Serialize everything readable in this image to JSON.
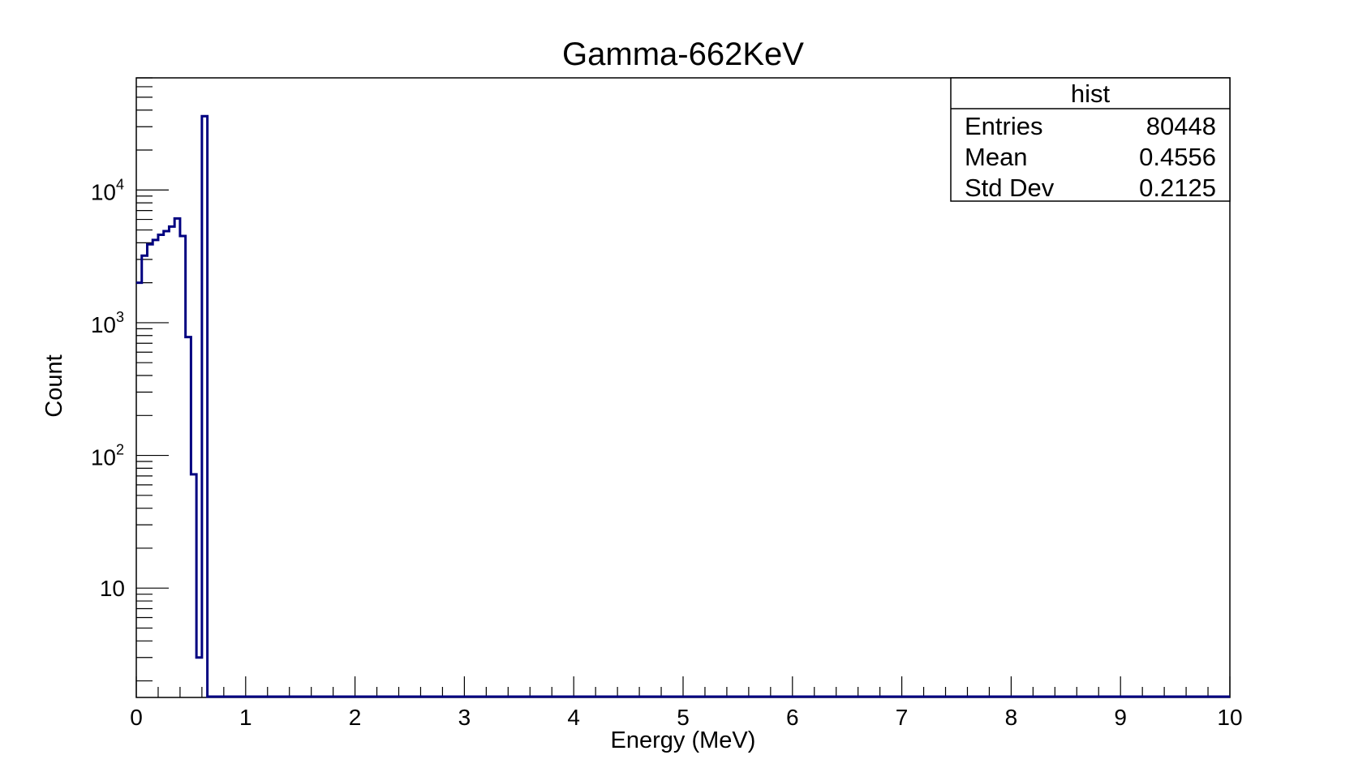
{
  "chart_data": {
    "type": "histogram",
    "title": "Gamma-662KeV",
    "xlabel": "Energy (MeV)",
    "ylabel": "Count",
    "xlim": [
      0,
      10
    ],
    "ylim": [
      1.5,
      70000
    ],
    "yscale": "log",
    "grid": false,
    "line_color": "#000080",
    "bin_width": 0.05,
    "bin_start": 0,
    "values": [
      2000,
      3200,
      3900,
      4200,
      4600,
      4900,
      5300,
      6100,
      4500,
      780,
      72,
      3,
      36000
    ],
    "x_ticks": [
      "0",
      "1",
      "2",
      "3",
      "4",
      "5",
      "6",
      "7",
      "8",
      "9",
      "10"
    ],
    "y_ticks": [
      {
        "value": 10,
        "base": "10",
        "exp": ""
      },
      {
        "value": 100,
        "base": "10",
        "exp": "2"
      },
      {
        "value": 1000,
        "base": "10",
        "exp": "3"
      },
      {
        "value": 10000,
        "base": "10",
        "exp": "4"
      }
    ],
    "stats_box": {
      "title": "hist",
      "rows": [
        {
          "label": "Entries",
          "value": "80448"
        },
        {
          "label": "Mean",
          "value": "0.4556"
        },
        {
          "label": "Std Dev",
          "value": "0.2125"
        }
      ]
    }
  }
}
